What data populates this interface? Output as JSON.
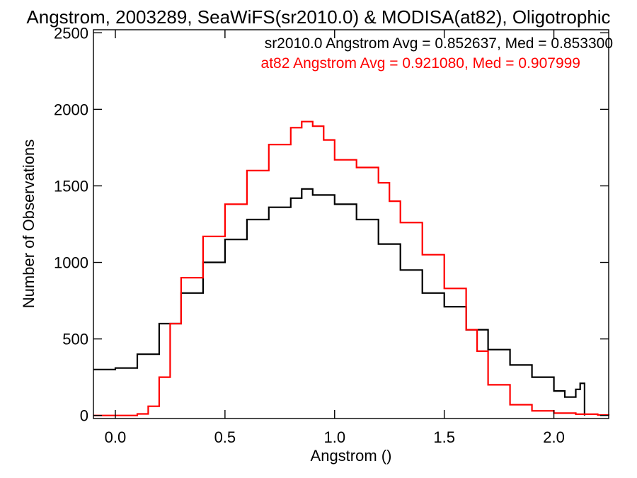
{
  "chart_data": {
    "type": "line",
    "style": "step-histogram",
    "title": "Angstrom, 2003289, SeaWiFS(sr2010.0) & MODISA(at82), Oligotrophic",
    "xlabel": "Angstrom ()",
    "ylabel": "Number of Observations",
    "xlim": [
      -0.1,
      2.25
    ],
    "ylim": [
      -20,
      2520
    ],
    "xticks": [
      0.0,
      0.5,
      1.0,
      1.5,
      2.0
    ],
    "xtick_labels": [
      "0.0",
      "0.5",
      "1.0",
      "1.5",
      "2.0"
    ],
    "yticks": [
      0,
      500,
      1000,
      1500,
      2000,
      2500
    ],
    "ytick_labels": [
      "0",
      "500",
      "1000",
      "1500",
      "2000",
      "2500"
    ],
    "grid": false,
    "legend": {
      "placement": "top-right",
      "entries": [
        {
          "text": "sr2010.0 Angstrom Avg = 0.852637, Med = 0.853300",
          "color": "#000000"
        },
        {
          "text": "at82 Angstrom Avg = 0.921080, Med = 0.907999",
          "color": "#ff0000"
        }
      ]
    },
    "series": [
      {
        "name": "sr2010.0",
        "color": "#000000",
        "x": [
          -0.1,
          0.0,
          0.1,
          0.2,
          0.3,
          0.4,
          0.5,
          0.6,
          0.7,
          0.8,
          0.85,
          0.9,
          1.0,
          1.1,
          1.2,
          1.3,
          1.4,
          1.5,
          1.6,
          1.7,
          1.8,
          1.9,
          2.0,
          2.05,
          2.1,
          2.12,
          2.14
        ],
        "y": [
          300,
          310,
          400,
          600,
          800,
          1000,
          1150,
          1280,
          1360,
          1420,
          1480,
          1440,
          1380,
          1280,
          1120,
          950,
          800,
          710,
          560,
          430,
          330,
          250,
          160,
          120,
          170,
          210,
          0
        ]
      },
      {
        "name": "at82",
        "color": "#ff0000",
        "x": [
          -0.1,
          0.0,
          0.1,
          0.15,
          0.2,
          0.25,
          0.3,
          0.4,
          0.5,
          0.6,
          0.7,
          0.8,
          0.85,
          0.9,
          0.95,
          1.0,
          1.1,
          1.2,
          1.25,
          1.3,
          1.4,
          1.5,
          1.6,
          1.65,
          1.7,
          1.8,
          1.9,
          2.0,
          2.1,
          2.2,
          2.25
        ],
        "y": [
          0,
          0,
          10,
          60,
          250,
          600,
          900,
          1170,
          1380,
          1600,
          1770,
          1880,
          1920,
          1890,
          1800,
          1670,
          1620,
          1520,
          1400,
          1260,
          1050,
          830,
          560,
          420,
          200,
          70,
          30,
          15,
          8,
          3,
          0
        ]
      }
    ]
  }
}
